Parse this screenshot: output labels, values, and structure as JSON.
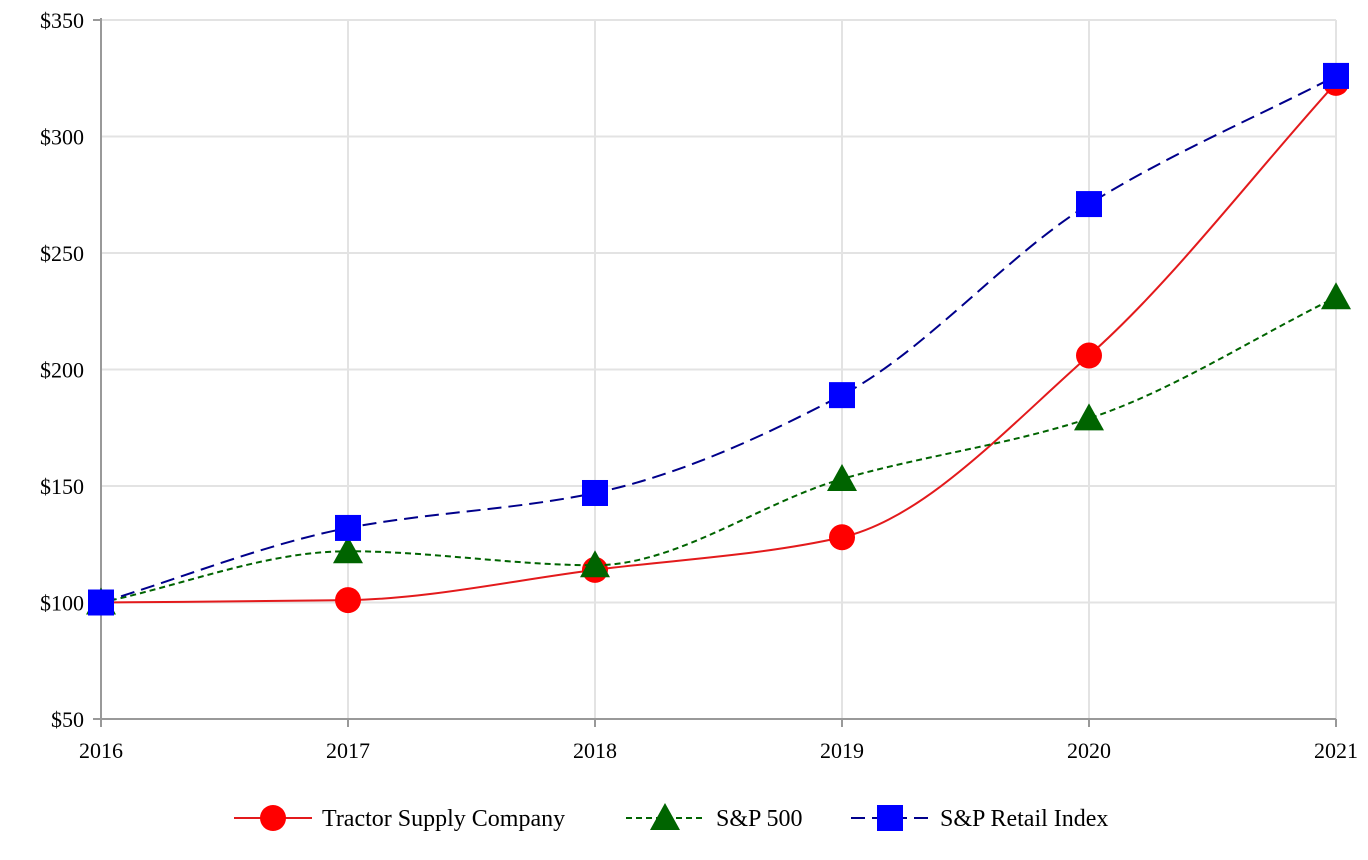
{
  "chart_data": {
    "type": "line",
    "title": "",
    "xlabel": "",
    "ylabel": "",
    "x": [
      "2016",
      "2017",
      "2018",
      "2019",
      "2020",
      "2021"
    ],
    "ylim": [
      50,
      350
    ],
    "yticks": [
      50,
      100,
      150,
      200,
      250,
      300,
      350
    ],
    "ytick_labels": [
      "$50",
      "$100",
      "$150",
      "$200",
      "$250",
      "$300",
      "$350"
    ],
    "grid": true,
    "legend_position": "bottom-center",
    "series": [
      {
        "name": "Tractor Supply Company",
        "values": [
          100,
          101,
          114,
          128,
          206,
          323
        ],
        "color": "#ff0000",
        "line_color": "#e31a1c",
        "line_style": "solid",
        "marker": "circle"
      },
      {
        "name": "S&P 500",
        "values": [
          100,
          122,
          116,
          153,
          179,
          231
        ],
        "color": "#006400",
        "line_color": "#006400",
        "line_style": "dotted-dash",
        "marker": "triangle"
      },
      {
        "name": "S&P Retail Index",
        "values": [
          100,
          132,
          147,
          189,
          271,
          326
        ],
        "color": "#0000ff",
        "line_color": "#00008b",
        "line_style": "dashed",
        "marker": "square"
      }
    ]
  }
}
